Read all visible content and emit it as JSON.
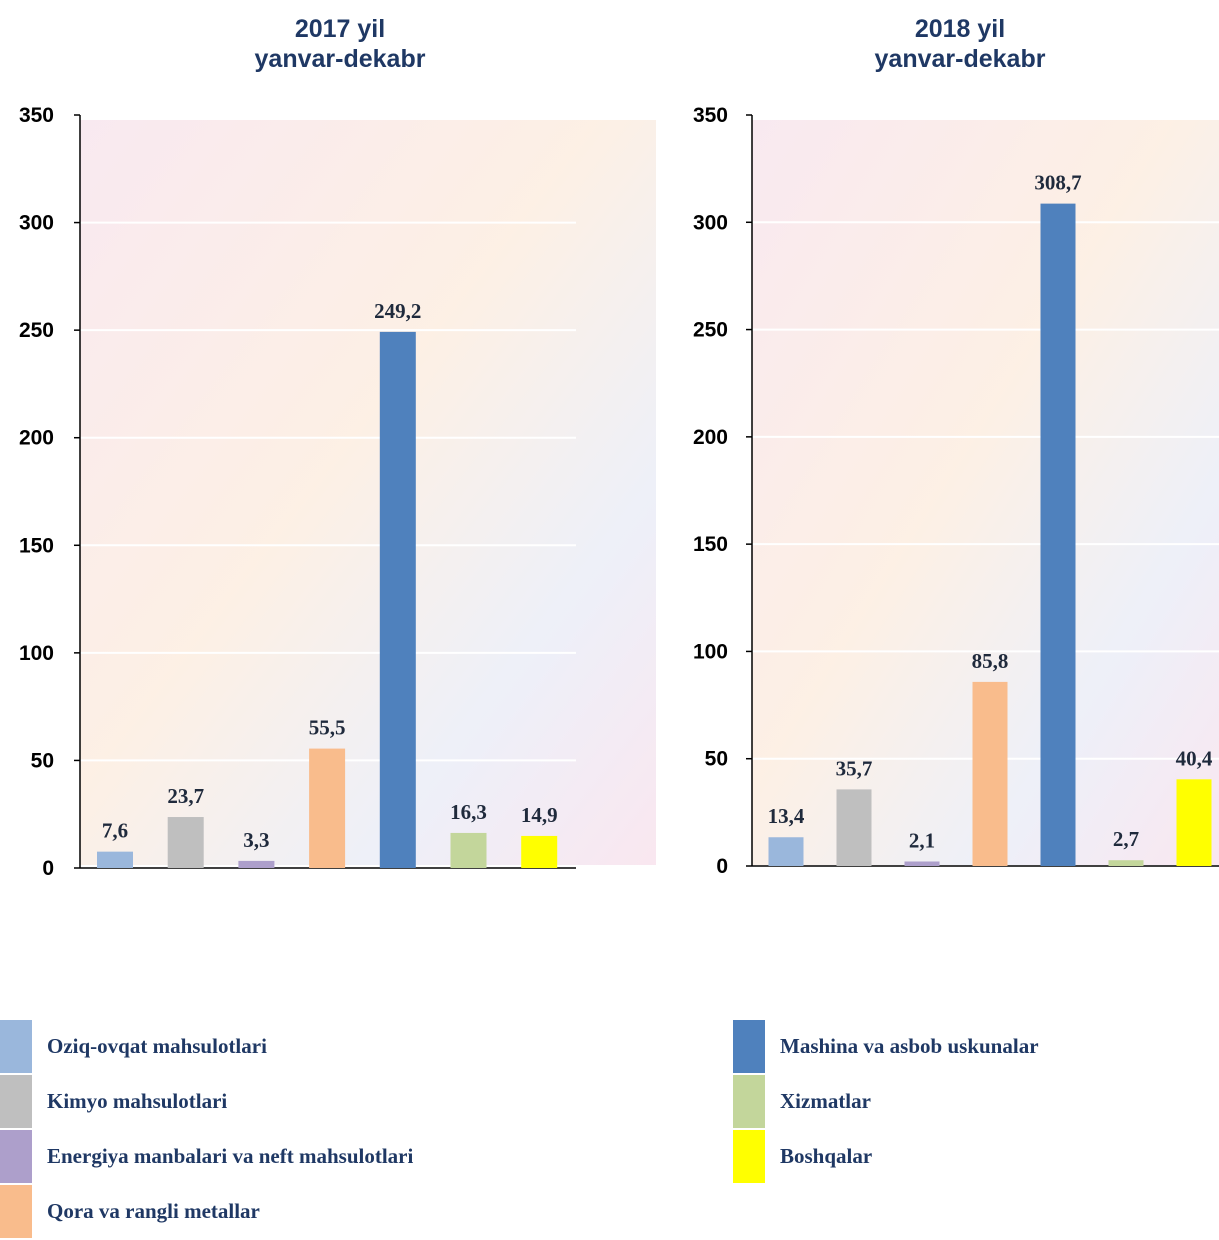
{
  "chart_data": [
    {
      "type": "bar",
      "title": [
        "2017 yil",
        "yanvar-dekabr"
      ],
      "categories": [
        "Oziq-ovqat mahsulotlari",
        "Kimyo mahsulotlari",
        "Energiya manbalari va neft mahsulotlari",
        "Qora va rangli metallar",
        "Mashina va asbob uskunalar",
        "Xizmatlar",
        "Boshqalar"
      ],
      "values": [
        7.6,
        23.7,
        3.3,
        55.5,
        249.2,
        16.3,
        14.9
      ],
      "value_labels": [
        "7,6",
        "23,7",
        "3,3",
        "55,5",
        "249,2",
        "16,3",
        "14,9"
      ],
      "ylim": [
        0,
        350
      ],
      "yticks": [
        0,
        50,
        100,
        150,
        200,
        250,
        300,
        350
      ],
      "grid": true
    },
    {
      "type": "bar",
      "title": [
        "2018 yil",
        "yanvar-dekabr"
      ],
      "categories": [
        "Oziq-ovqat mahsulotlari",
        "Kimyo mahsulotlari",
        "Energiya manbalari va neft mahsulotlari",
        "Qora va rangli metallar",
        "Mashina va asbob uskunalar",
        "Xizmatlar",
        "Boshqalar"
      ],
      "values": [
        13.4,
        35.7,
        2.1,
        85.8,
        308.7,
        2.7,
        40.4
      ],
      "value_labels": [
        "13,4",
        "35,7",
        "2,1",
        "85,8",
        "308,7",
        "2,7",
        "40,4"
      ],
      "ylim": [
        0,
        350
      ],
      "yticks": [
        0,
        50,
        100,
        150,
        200,
        250,
        300,
        350
      ],
      "grid": true
    }
  ],
  "colors": [
    "#9ab7dc",
    "#bfbfbf",
    "#ad9fcb",
    "#f9bc8c",
    "#4f81bd",
    "#c3d69b",
    "#ffff00"
  ],
  "legend": {
    "placement": "bottom",
    "items": [
      {
        "label": "Oziq-ovqat mahsulotlari",
        "color": "#9ab7dc"
      },
      {
        "label": "Kimyo mahsulotlari",
        "color": "#bfbfbf"
      },
      {
        "label": "Energiya manbalari va neft mahsulotlari",
        "color": "#ad9fcb"
      },
      {
        "label": "Qora va rangli metallar",
        "color": "#f9bc8c"
      },
      {
        "label": "Mashina va asbob uskunalar",
        "color": "#4f81bd"
      },
      {
        "label": "Xizmatlar",
        "color": "#c3d69b"
      },
      {
        "label": "Boshqalar",
        "color": "#ffff00"
      }
    ]
  }
}
